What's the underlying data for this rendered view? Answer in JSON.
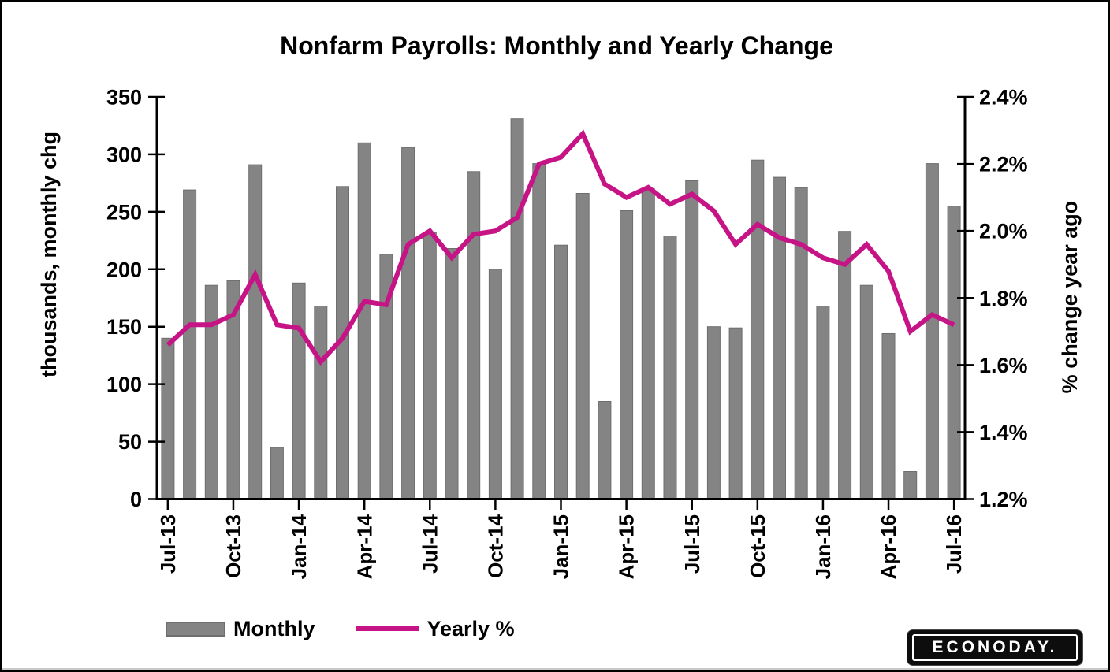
{
  "title": "Nonfarm Payrolls: Monthly and Yearly Change",
  "left_axis": {
    "title": "thousands, monthly chg",
    "min": 0,
    "max": 350,
    "step": 50,
    "ticks": [
      "0",
      "50",
      "100",
      "150",
      "200",
      "250",
      "300",
      "350"
    ]
  },
  "right_axis": {
    "title": "% change year ago",
    "min": 1.2,
    "max": 2.4,
    "step": 0.2,
    "ticks": [
      "1.2%",
      "1.4%",
      "1.6%",
      "1.8%",
      "2.0%",
      "2.2%",
      "2.4%"
    ]
  },
  "x_axis": {
    "labels": [
      "Jul-13",
      "Oct-13",
      "Jan-14",
      "Apr-14",
      "Jul-14",
      "Oct-14",
      "Jan-15",
      "Apr-15",
      "Jul-15",
      "Oct-15",
      "Jan-16",
      "Apr-16",
      "Jul-16"
    ],
    "label_every": 3
  },
  "legend": {
    "monthly_label": "Monthly",
    "yearly_label": "Yearly %"
  },
  "logo": {
    "text": "ECONODAY."
  },
  "colors": {
    "bar": "#848484",
    "bar_border": "#6e6e6e",
    "line": "#C61486",
    "axis": "#000000",
    "text": "#000000",
    "background": "#ffffff"
  },
  "chart_data": {
    "type": "combo",
    "title": "Nonfarm Payrolls: Monthly and Yearly Change",
    "categories": [
      "Jul-13",
      "Aug-13",
      "Sep-13",
      "Oct-13",
      "Nov-13",
      "Dec-13",
      "Jan-14",
      "Feb-14",
      "Mar-14",
      "Apr-14",
      "May-14",
      "Jun-14",
      "Jul-14",
      "Aug-14",
      "Sep-14",
      "Oct-14",
      "Nov-14",
      "Dec-14",
      "Jan-15",
      "Feb-15",
      "Mar-15",
      "Apr-15",
      "May-15",
      "Jun-15",
      "Jul-15",
      "Aug-15",
      "Sep-15",
      "Oct-15",
      "Nov-15",
      "Dec-15",
      "Jan-16",
      "Feb-16",
      "Mar-16",
      "Apr-16",
      "May-16",
      "Jun-16",
      "Jul-16"
    ],
    "series": [
      {
        "name": "Monthly",
        "chart_type": "bar",
        "axis": "left",
        "unit": "thousands",
        "values": [
          140,
          269,
          186,
          190,
          291,
          45,
          188,
          168,
          272,
          310,
          213,
          306,
          232,
          218,
          285,
          200,
          331,
          292,
          221,
          266,
          85,
          251,
          270,
          229,
          277,
          150,
          149,
          295,
          280,
          271,
          168,
          233,
          186,
          144,
          24,
          292,
          255
        ]
      },
      {
        "name": "Yearly %",
        "chart_type": "line",
        "axis": "right",
        "unit": "percent",
        "values": [
          1.66,
          1.72,
          1.72,
          1.75,
          1.87,
          1.72,
          1.71,
          1.61,
          1.68,
          1.79,
          1.78,
          1.96,
          2.0,
          1.92,
          1.99,
          2.0,
          2.04,
          2.2,
          2.22,
          2.29,
          2.14,
          2.1,
          2.13,
          2.08,
          2.11,
          2.06,
          1.96,
          2.02,
          1.98,
          1.96,
          1.92,
          1.9,
          1.96,
          1.88,
          1.7,
          1.75,
          1.72
        ]
      }
    ],
    "xlabel": "",
    "ylabel_left": "thousands, monthly chg",
    "ylabel_right": "% change year ago",
    "left_ylim": [
      0,
      350
    ],
    "right_ylim": [
      1.2,
      2.4
    ],
    "grid": false,
    "legend_position": "bottom-left"
  }
}
